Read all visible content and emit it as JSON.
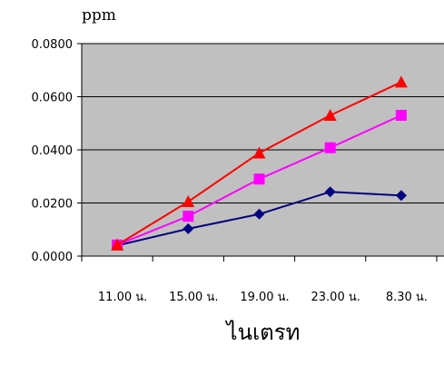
{
  "chart_data": {
    "type": "line",
    "title": "",
    "ylabel": "ppm",
    "xlabel": "ไนเตรท",
    "categories": [
      "11.00 น.",
      "15.00 น.",
      "19.00 น.",
      "23.00 น.",
      "8.30 น."
    ],
    "ylim": [
      0,
      0.08
    ],
    "yticks": [
      "0.0000",
      "0.0200",
      "0.0400",
      "0.0600",
      "0.0800"
    ],
    "grid": true,
    "plot_background": "#c0c0c0",
    "series": [
      {
        "color": "#000080",
        "marker": "diamond",
        "values": [
          0.004,
          0.0103,
          0.0158,
          0.0242,
          0.0228
        ]
      },
      {
        "color": "#ff00ff",
        "marker": "square",
        "values": [
          0.0042,
          0.015,
          0.029,
          0.0408,
          0.053
        ]
      },
      {
        "color": "#ff0000",
        "marker": "triangle",
        "values": [
          0.0042,
          0.0205,
          0.0388,
          0.053,
          0.0655
        ]
      }
    ]
  }
}
